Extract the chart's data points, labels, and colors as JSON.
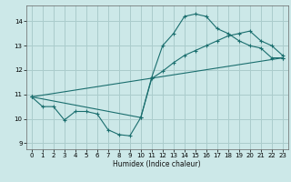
{
  "xlabel": "Humidex (Indice chaleur)",
  "bg_color": "#cce8e8",
  "grid_color": "#aacccc",
  "line_color": "#1a6e6e",
  "xlim": [
    -0.5,
    23.5
  ],
  "ylim": [
    8.75,
    14.65
  ],
  "xticks": [
    0,
    1,
    2,
    3,
    4,
    5,
    6,
    7,
    8,
    9,
    10,
    11,
    12,
    13,
    14,
    15,
    16,
    17,
    18,
    19,
    20,
    21,
    22,
    23
  ],
  "yticks": [
    9,
    10,
    11,
    12,
    13,
    14
  ],
  "line1_x": [
    0,
    1,
    2,
    3,
    4,
    5,
    6,
    7,
    8,
    9,
    10,
    11,
    12,
    13,
    14,
    15,
    16,
    17,
    18,
    19,
    20,
    21,
    22,
    23
  ],
  "line1_y": [
    10.9,
    10.5,
    10.5,
    9.95,
    10.3,
    10.3,
    10.2,
    9.55,
    9.35,
    9.3,
    10.05,
    11.7,
    13.0,
    13.5,
    14.2,
    14.3,
    14.2,
    13.7,
    13.5,
    13.2,
    13.0,
    12.9,
    12.5,
    12.5
  ],
  "line2_x": [
    0,
    10,
    11,
    12,
    13,
    14,
    15,
    16,
    17,
    18,
    19,
    20,
    21,
    22,
    23
  ],
  "line2_y": [
    10.9,
    10.05,
    11.65,
    11.95,
    12.3,
    12.6,
    12.8,
    13.0,
    13.2,
    13.4,
    13.5,
    13.6,
    13.2,
    13.0,
    12.6
  ],
  "line3_x": [
    0,
    23
  ],
  "line3_y": [
    10.9,
    12.5
  ]
}
